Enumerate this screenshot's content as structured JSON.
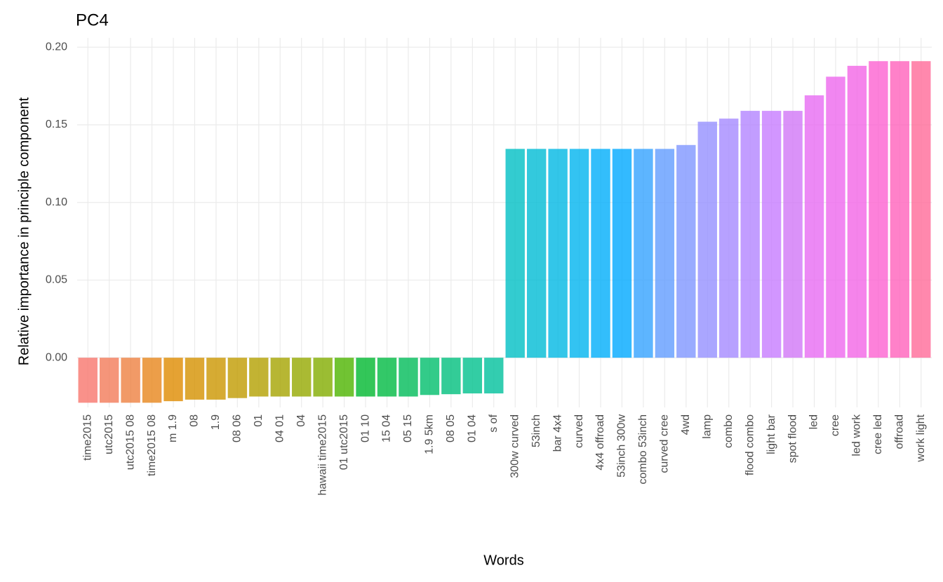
{
  "chart_data": {
    "type": "bar",
    "title": "PC4",
    "x_label": "Words",
    "y_label": "Relative importance in principle component",
    "categories": [
      "time2015",
      "utc2015",
      "utc2015 08",
      "time2015 08",
      "m 1.9",
      "08",
      "1.9",
      "08 06",
      "01",
      "04 01",
      "04",
      "hawaii time2015",
      "01 utc2015",
      "01 10",
      "15 04",
      "05 15",
      "1.9 5km",
      "08 05",
      "01 04",
      "s of",
      "300w curved",
      "53inch",
      "bar 4x4",
      "curved",
      "4x4 offroad",
      "53inch 300w",
      "combo 53inch",
      "curved cree",
      "4wd",
      "lamp",
      "combo",
      "flood combo",
      "light bar",
      "spot flood",
      "led",
      "cree",
      "led work",
      "cree led",
      "offroad",
      "work light"
    ],
    "values": [
      -0.029,
      -0.029,
      -0.029,
      -0.029,
      -0.028,
      -0.027,
      -0.027,
      -0.026,
      -0.025,
      -0.025,
      -0.025,
      -0.025,
      -0.025,
      -0.025,
      -0.025,
      -0.025,
      -0.024,
      -0.0235,
      -0.023,
      -0.023,
      0.1345,
      0.1345,
      0.1345,
      0.1345,
      0.1345,
      0.1345,
      0.1345,
      0.1345,
      0.137,
      0.152,
      0.154,
      0.159,
      0.159,
      0.159,
      0.169,
      0.181,
      0.188,
      0.191,
      0.191,
      0.191
    ],
    "colors": [
      "#F8766D",
      "#F37B59",
      "#ED8141",
      "#E7861B",
      "#DF8B00",
      "#D59100",
      "#CC9600",
      "#C09B00",
      "#B3A000",
      "#A5A400",
      "#95A900",
      "#82AD00",
      "#4DB400",
      "#00B82F",
      "#00BA42",
      "#00BC59",
      "#00BE6C",
      "#00BF7D",
      "#00C08D",
      "#00C19C",
      "#00BFC4",
      "#00BCD4",
      "#00B8E3",
      "#00B4EF",
      "#00AEFA",
      "#00A9FF",
      "#35A2FF",
      "#619CFF",
      "#7F96FF",
      "#9590FF",
      "#A58AFF",
      "#B385FF",
      "#C77CFF",
      "#D177F6",
      "#E76BF3",
      "#ED68ED",
      "#F365E6",
      "#FD61D1",
      "#FF62BC",
      "#FF6A98"
    ],
    "ylim": [
      -0.032,
      0.206
    ],
    "yticks": [
      {
        "value": 0,
        "label": "0.00"
      },
      {
        "value": 0.05,
        "label": "0.05"
      },
      {
        "value": 0.1,
        "label": "0.10"
      },
      {
        "value": 0.15,
        "label": "0.15"
      },
      {
        "value": 0.2,
        "label": "0.20"
      }
    ],
    "grid": true
  }
}
